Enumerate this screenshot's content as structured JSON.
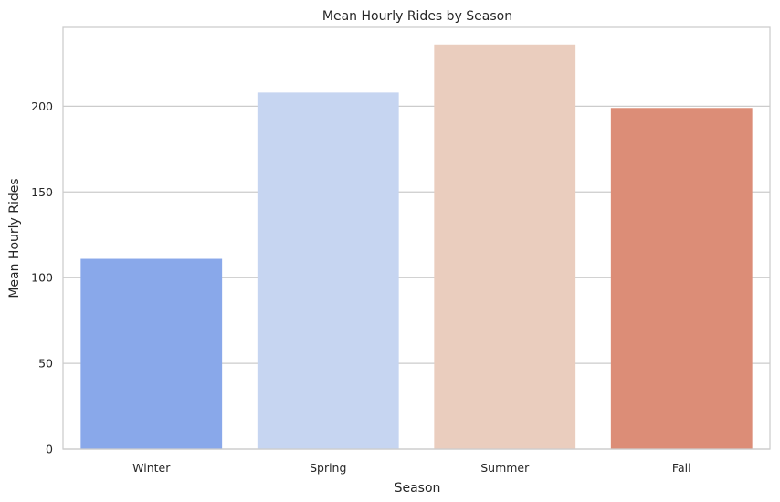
{
  "chart_data": {
    "type": "bar",
    "title": "Mean Hourly Rides by Season",
    "xlabel": "Season",
    "ylabel": "Mean Hourly Rides",
    "categories": [
      "Winter",
      "Spring",
      "Summer",
      "Fall"
    ],
    "values": [
      111,
      208,
      236,
      199
    ],
    "colors": [
      "#89a8ea",
      "#c6d5f1",
      "#eacdbe",
      "#dc8d77"
    ],
    "ylim": [
      0,
      246
    ],
    "yticks": [
      0,
      50,
      100,
      150,
      200
    ],
    "grid": true,
    "legend": "none"
  }
}
